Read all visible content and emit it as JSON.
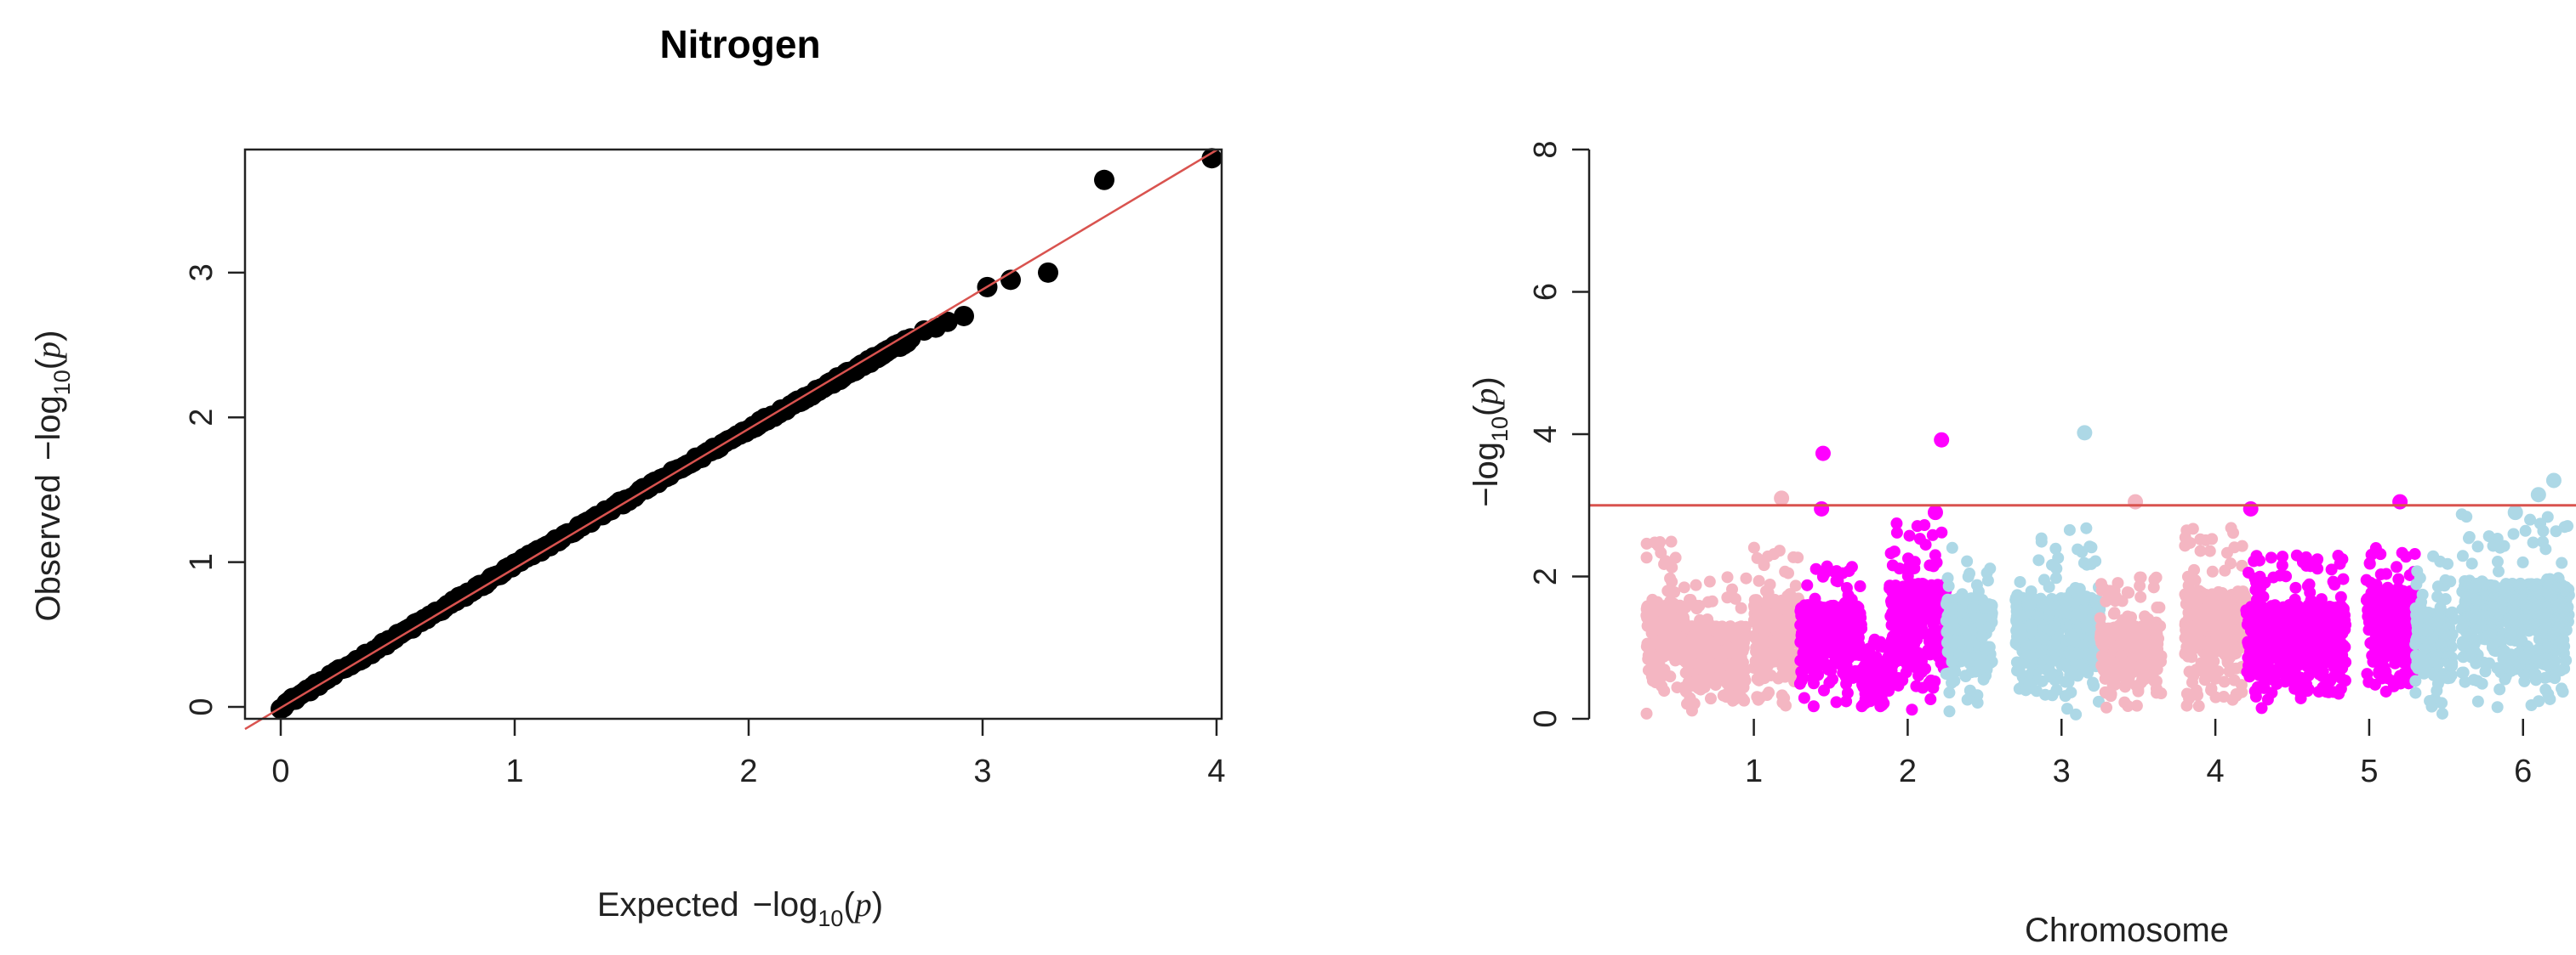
{
  "figure_title": "Nitrogen",
  "chart_data": [
    {
      "type": "scatter",
      "panel": "qq-plot",
      "title": "Nitrogen",
      "xlabel": {
        "prefix": "Expected",
        "minus": "−",
        "log": "log",
        "sub": "10",
        "open": "(",
        "var": "p",
        "close": ")"
      },
      "ylabel": {
        "prefix": "Observed",
        "minus": "−",
        "log": "log",
        "sub": "10",
        "open": "(",
        "var": "p",
        "close": ")"
      },
      "xlim": [
        0,
        4.0
      ],
      "ylim": [
        0,
        3.85
      ],
      "xticks": [
        0,
        1,
        2,
        3,
        4
      ],
      "yticks": [
        0,
        1,
        2,
        3
      ],
      "reference_line": {
        "slope": 1,
        "intercept": 0,
        "color": "#d9534f"
      },
      "point_color": "#000000",
      "bulk_curve": [
        [
          0,
          0
        ],
        [
          0.5,
          0.49
        ],
        [
          1.0,
          0.98
        ],
        [
          1.5,
          1.45
        ],
        [
          2.0,
          1.92
        ],
        [
          2.4,
          2.28
        ],
        [
          2.7,
          2.55
        ]
      ],
      "points": [
        {
          "x": 2.75,
          "y": 2.6
        },
        {
          "x": 2.8,
          "y": 2.62
        },
        {
          "x": 2.85,
          "y": 2.66
        },
        {
          "x": 2.92,
          "y": 2.7
        },
        {
          "x": 3.02,
          "y": 2.9
        },
        {
          "x": 3.12,
          "y": 2.95
        },
        {
          "x": 3.28,
          "y": 3.0
        },
        {
          "x": 3.52,
          "y": 3.64
        },
        {
          "x": 3.98,
          "y": 3.79
        }
      ]
    },
    {
      "type": "scatter",
      "panel": "manhattan-plot",
      "xlabel": "Chromosome",
      "ylabel": {
        "minus": "−",
        "log": "log",
        "sub": "10",
        "open": "(",
        "var": "p",
        "close": ")"
      },
      "ylim": [
        0,
        8
      ],
      "yticks": [
        0,
        2,
        4,
        6,
        8
      ],
      "xticks": [
        {
          "label": "1",
          "pos": 1.0
        },
        {
          "label": "2",
          "pos": 2.0
        },
        {
          "label": "3",
          "pos": 3.0
        },
        {
          "label": "4",
          "pos": 4.0
        },
        {
          "label": "5",
          "pos": 5.0
        },
        {
          "label": "6",
          "pos": 6.0
        }
      ],
      "xlim": [
        0.3,
        6.3
      ],
      "threshold": {
        "y": 3.0,
        "color": "#d9534f"
      },
      "colors": {
        "pink": "#f4b6c2",
        "magenta": "#ff00ff",
        "lightblue": "#add8e6"
      },
      "segments": [
        {
          "start": 0.3,
          "end": 0.55,
          "color": "pink",
          "typ": 1.6,
          "max": 2.5
        },
        {
          "start": 0.55,
          "end": 0.95,
          "color": "pink",
          "typ": 1.3,
          "max": 2.0
        },
        {
          "start": 1.0,
          "end": 1.3,
          "color": "pink",
          "typ": 1.7,
          "max": 2.5
        },
        {
          "start": 1.3,
          "end": 1.7,
          "color": "magenta",
          "typ": 1.6,
          "max": 2.2
        },
        {
          "start": 1.7,
          "end": 1.88,
          "color": "magenta",
          "typ": 0.7,
          "max": 1.2
        },
        {
          "start": 1.88,
          "end": 2.25,
          "color": "magenta",
          "typ": 1.9,
          "max": 2.8
        },
        {
          "start": 2.25,
          "end": 2.55,
          "color": "lightblue",
          "typ": 1.7,
          "max": 2.5
        },
        {
          "start": 2.7,
          "end": 3.25,
          "color": "lightblue",
          "typ": 1.7,
          "max": 2.7
        },
        {
          "start": 3.25,
          "end": 3.65,
          "color": "pink",
          "typ": 1.3,
          "max": 2.0
        },
        {
          "start": 3.8,
          "end": 4.2,
          "color": "pink",
          "typ": 1.8,
          "max": 2.7
        },
        {
          "start": 4.2,
          "end": 4.85,
          "color": "magenta",
          "typ": 1.6,
          "max": 2.3
        },
        {
          "start": 4.98,
          "end": 5.3,
          "color": "magenta",
          "typ": 1.8,
          "max": 2.4
        },
        {
          "start": 5.3,
          "end": 5.55,
          "color": "lightblue",
          "typ": 1.5,
          "max": 2.3
        },
        {
          "start": 5.6,
          "end": 6.3,
          "color": "lightblue",
          "typ": 1.9,
          "max": 2.9
        }
      ],
      "highlights": [
        {
          "x": 1.45,
          "y": 3.73,
          "color": "magenta"
        },
        {
          "x": 1.44,
          "y": 2.95,
          "color": "magenta"
        },
        {
          "x": 1.18,
          "y": 3.1,
          "color": "pink"
        },
        {
          "x": 2.22,
          "y": 3.92,
          "color": "magenta"
        },
        {
          "x": 2.18,
          "y": 2.9,
          "color": "magenta"
        },
        {
          "x": 3.15,
          "y": 4.02,
          "color": "lightblue"
        },
        {
          "x": 3.48,
          "y": 3.05,
          "color": "pink"
        },
        {
          "x": 4.23,
          "y": 2.95,
          "color": "magenta"
        },
        {
          "x": 5.2,
          "y": 3.05,
          "color": "magenta"
        },
        {
          "x": 6.2,
          "y": 3.35,
          "color": "lightblue"
        },
        {
          "x": 6.1,
          "y": 3.15,
          "color": "lightblue"
        },
        {
          "x": 5.95,
          "y": 2.9,
          "color": "lightblue"
        }
      ]
    }
  ]
}
